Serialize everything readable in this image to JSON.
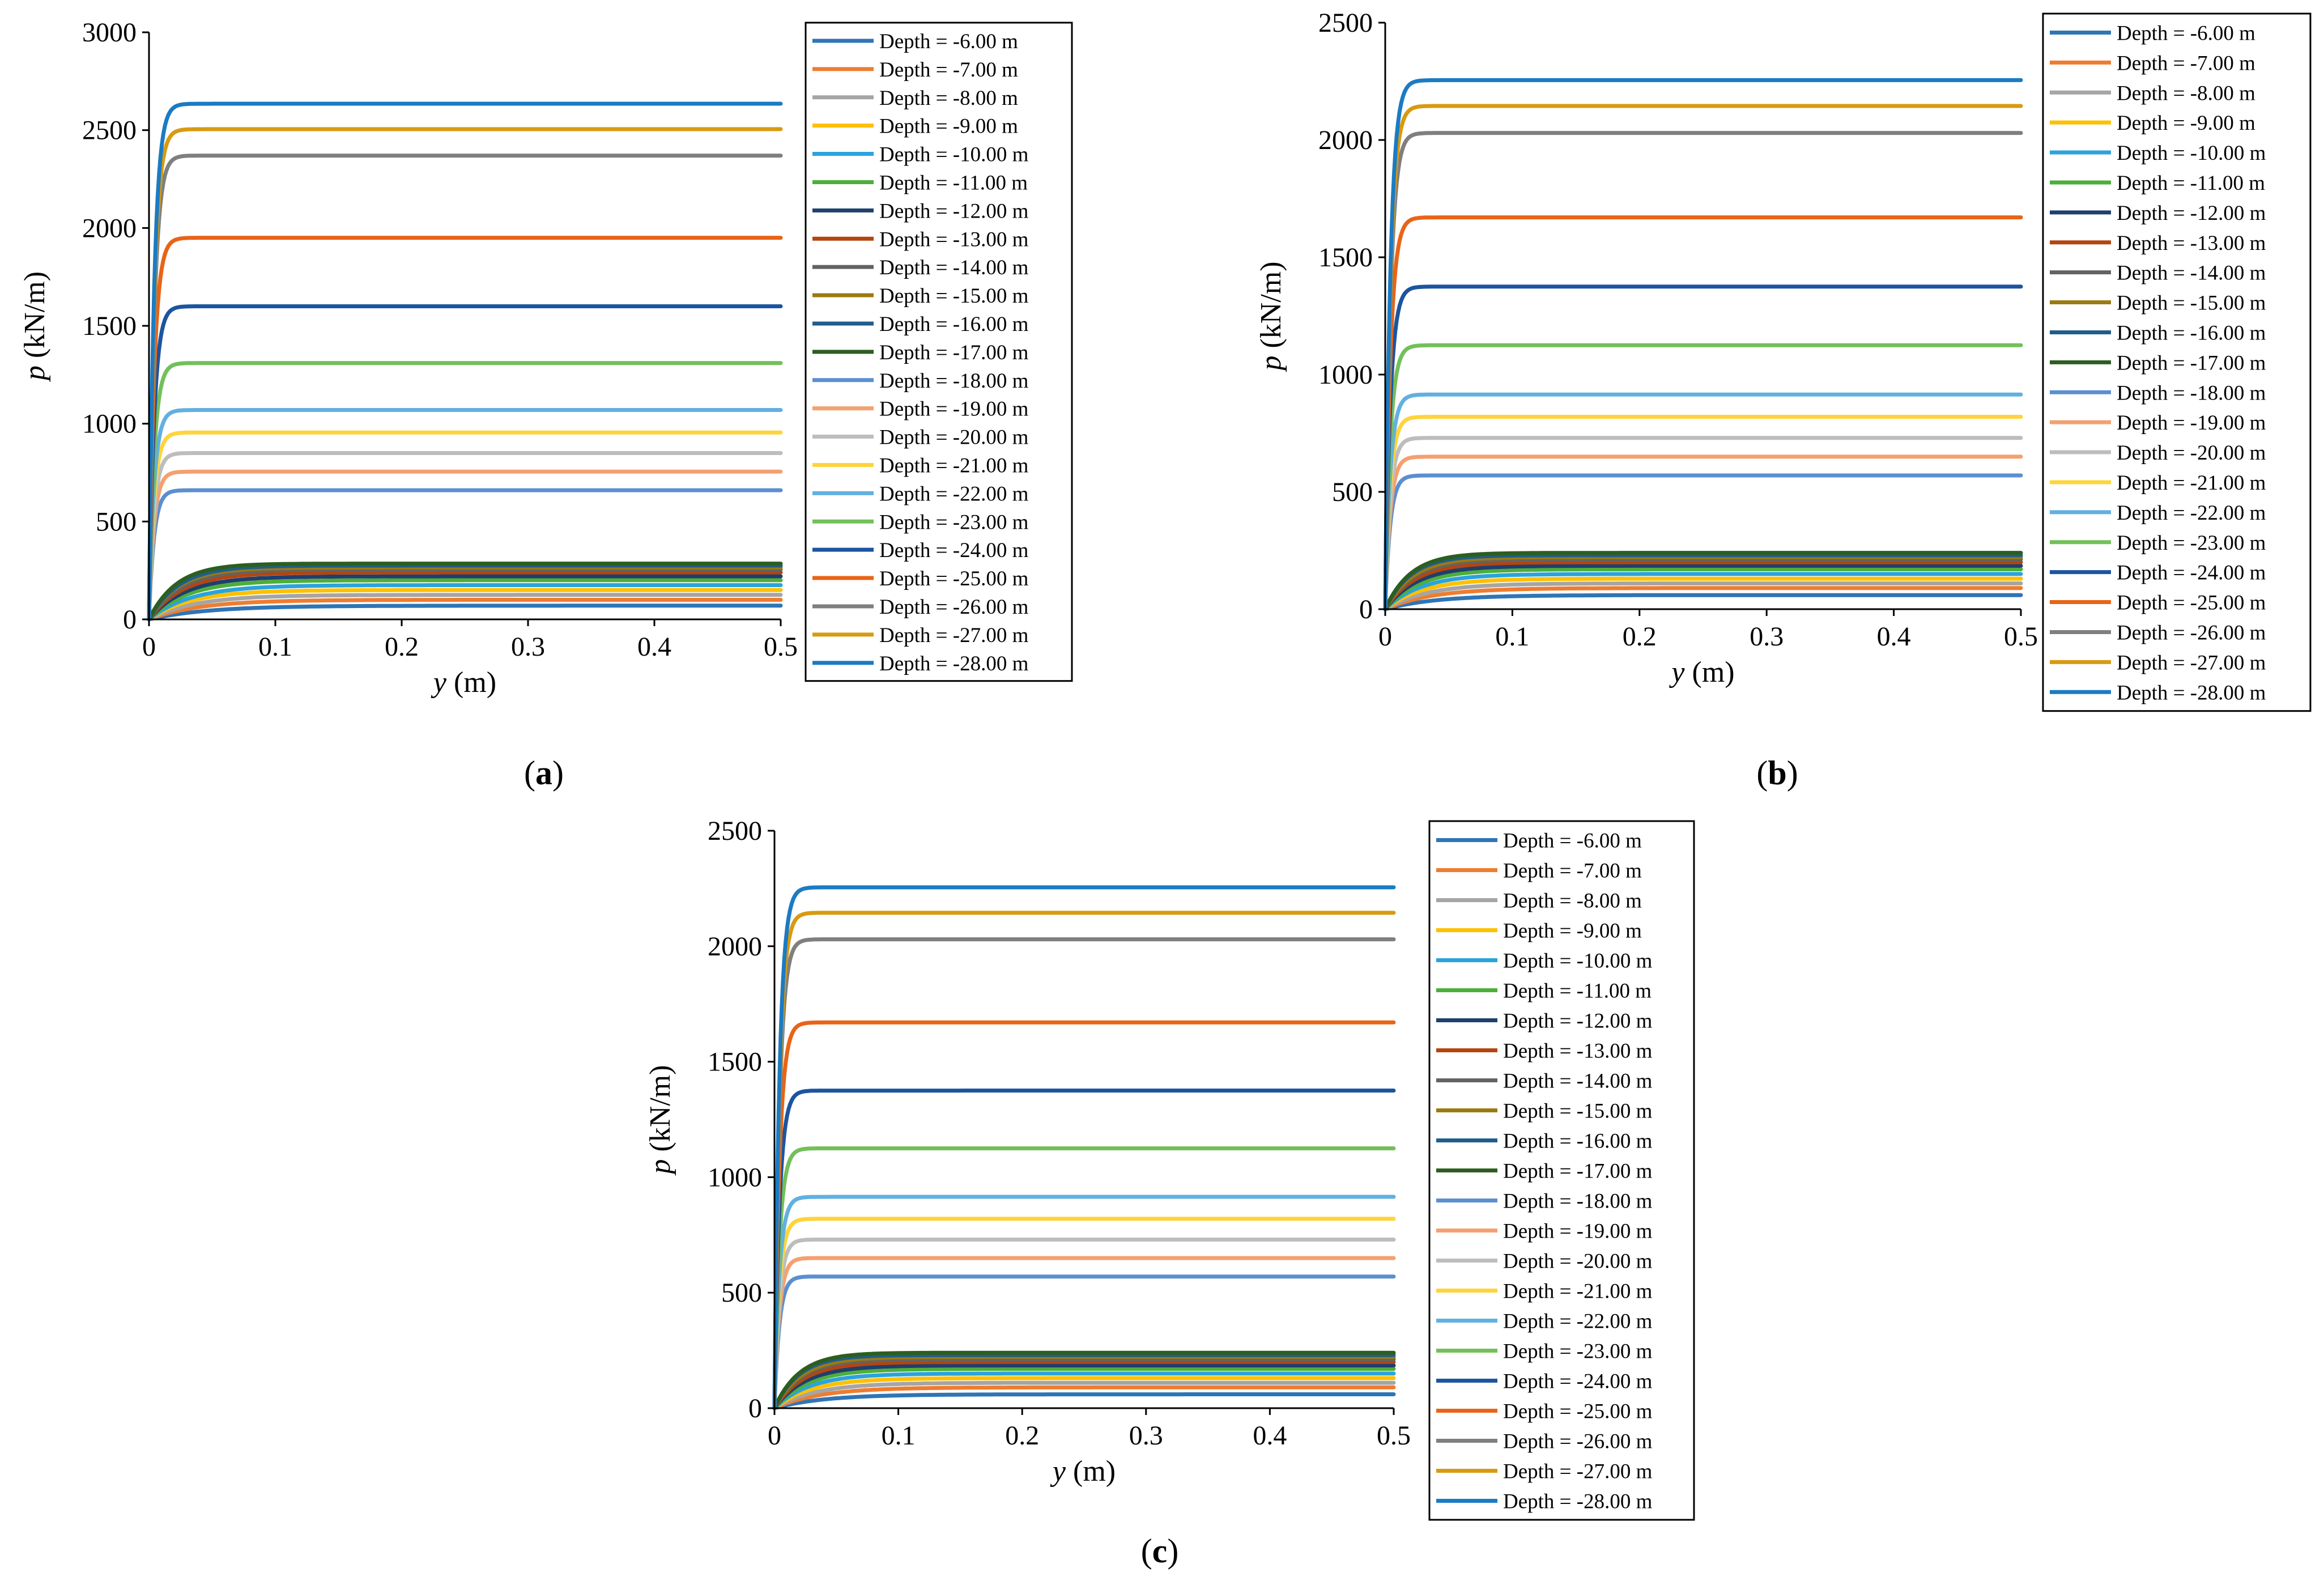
{
  "colors": {
    "palette": [
      "#2E75B6",
      "#ED7D31",
      "#A5A5A5",
      "#FFC000",
      "#2BA3DC",
      "#4CAF3A",
      "#1F3F6E",
      "#B3450F",
      "#636363",
      "#9C7A10",
      "#1F5E8C",
      "#2C5E20",
      "#5B8FD0",
      "#F4A070",
      "#BDBDBD",
      "#FFD43B",
      "#62B0E0",
      "#73C05A",
      "#1B55A0",
      "#E86417",
      "#7F7F7F",
      "#D89A10",
      "#1B7BC3"
    ]
  },
  "chart_data": [
    {
      "type": "line",
      "caption": "a",
      "title": "",
      "xlabel_italic": "y",
      "xlabel_rest": " (m)",
      "ylabel_italic": "p",
      "ylabel_rest": " (kN/m)",
      "xlim": [
        0,
        0.5
      ],
      "ylim": [
        0,
        3000
      ],
      "xticks": [
        "0",
        "0.1",
        "0.2",
        "0.3",
        "0.4",
        "0.5"
      ],
      "yticks": [
        "0",
        "500",
        "1000",
        "1500",
        "2000",
        "2500",
        "3000"
      ],
      "series": [
        {
          "name": "Depth = -6.00 m",
          "ult": 70,
          "y50": 0.14
        },
        {
          "name": "Depth = -7.00 m",
          "ult": 100,
          "y50": 0.12
        },
        {
          "name": "Depth = -8.00 m",
          "ult": 125,
          "y50": 0.11
        },
        {
          "name": "Depth = -9.00 m",
          "ult": 150,
          "y50": 0.1
        },
        {
          "name": "Depth = -10.00 m",
          "ult": 175,
          "y50": 0.1
        },
        {
          "name": "Depth = -11.00 m",
          "ult": 200,
          "y50": 0.09
        },
        {
          "name": "Depth = -12.00 m",
          "ult": 220,
          "y50": 0.085
        },
        {
          "name": "Depth = -13.00 m",
          "ult": 240,
          "y50": 0.08
        },
        {
          "name": "Depth = -14.00 m",
          "ult": 255,
          "y50": 0.075
        },
        {
          "name": "Depth = -15.00 m",
          "ult": 265,
          "y50": 0.07
        },
        {
          "name": "Depth = -16.00 m",
          "ult": 275,
          "y50": 0.07
        },
        {
          "name": "Depth = -17.00 m",
          "ult": 285,
          "y50": 0.065
        },
        {
          "name": "Depth = -18.00 m",
          "ult": 660,
          "y50": 0.012
        },
        {
          "name": "Depth = -19.00 m",
          "ult": 755,
          "y50": 0.012
        },
        {
          "name": "Depth = -20.00 m",
          "ult": 850,
          "y50": 0.012
        },
        {
          "name": "Depth = -21.00 m",
          "ult": 955,
          "y50": 0.012
        },
        {
          "name": "Depth = -22.00 m",
          "ult": 1070,
          "y50": 0.012
        },
        {
          "name": "Depth = -23.00 m",
          "ult": 1310,
          "y50": 0.012
        },
        {
          "name": "Depth = -24.00 m",
          "ult": 1600,
          "y50": 0.012
        },
        {
          "name": "Depth = -25.00 m",
          "ult": 1950,
          "y50": 0.012
        },
        {
          "name": "Depth = -26.00 m",
          "ult": 2370,
          "y50": 0.012
        },
        {
          "name": "Depth = -27.00 m",
          "ult": 2505,
          "y50": 0.012
        },
        {
          "name": "Depth = -28.00 m",
          "ult": 2635,
          "y50": 0.012
        }
      ]
    },
    {
      "type": "line",
      "caption": "b",
      "title": "",
      "xlabel_italic": "y",
      "xlabel_rest": " (m)",
      "ylabel_italic": "p",
      "ylabel_rest": " (kN/m)",
      "xlim": [
        0,
        0.5
      ],
      "ylim": [
        0,
        2500
      ],
      "xticks": [
        "0",
        "0.1",
        "0.2",
        "0.3",
        "0.4",
        "0.5"
      ],
      "yticks": [
        "0",
        "500",
        "1000",
        "1500",
        "2000",
        "2500"
      ],
      "series": [
        {
          "name": "Depth = -6.00 m",
          "ult": 60,
          "y50": 0.12
        },
        {
          "name": "Depth = -7.00 m",
          "ult": 90,
          "y50": 0.11
        },
        {
          "name": "Depth = -8.00 m",
          "ult": 110,
          "y50": 0.1
        },
        {
          "name": "Depth = -9.00 m",
          "ult": 130,
          "y50": 0.09
        },
        {
          "name": "Depth = -10.00 m",
          "ult": 150,
          "y50": 0.085
        },
        {
          "name": "Depth = -11.00 m",
          "ult": 170,
          "y50": 0.08
        },
        {
          "name": "Depth = -12.00 m",
          "ult": 185,
          "y50": 0.075
        },
        {
          "name": "Depth = -13.00 m",
          "ult": 200,
          "y50": 0.07
        },
        {
          "name": "Depth = -14.00 m",
          "ult": 212,
          "y50": 0.065
        },
        {
          "name": "Depth = -15.00 m",
          "ult": 222,
          "y50": 0.065
        },
        {
          "name": "Depth = -16.00 m",
          "ult": 230,
          "y50": 0.06
        },
        {
          "name": "Depth = -17.00 m",
          "ult": 240,
          "y50": 0.06
        },
        {
          "name": "Depth = -18.00 m",
          "ult": 570,
          "y50": 0.012
        },
        {
          "name": "Depth = -19.00 m",
          "ult": 650,
          "y50": 0.012
        },
        {
          "name": "Depth = -20.00 m",
          "ult": 730,
          "y50": 0.012
        },
        {
          "name": "Depth = -21.00 m",
          "ult": 820,
          "y50": 0.012
        },
        {
          "name": "Depth = -22.00 m",
          "ult": 915,
          "y50": 0.012
        },
        {
          "name": "Depth = -23.00 m",
          "ult": 1125,
          "y50": 0.012
        },
        {
          "name": "Depth = -24.00 m",
          "ult": 1375,
          "y50": 0.012
        },
        {
          "name": "Depth = -25.00 m",
          "ult": 1670,
          "y50": 0.012
        },
        {
          "name": "Depth = -26.00 m",
          "ult": 2030,
          "y50": 0.012
        },
        {
          "name": "Depth = -27.00 m",
          "ult": 2145,
          "y50": 0.012
        },
        {
          "name": "Depth = -28.00 m",
          "ult": 2255,
          "y50": 0.012
        }
      ]
    },
    {
      "type": "line",
      "caption": "c",
      "title": "",
      "xlabel_italic": "y",
      "xlabel_rest": " (m)",
      "ylabel_italic": "p",
      "ylabel_rest": " (kN/m)",
      "xlim": [
        0,
        0.5
      ],
      "ylim": [
        0,
        2500
      ],
      "xticks": [
        "0",
        "0.1",
        "0.2",
        "0.3",
        "0.4",
        "0.5"
      ],
      "yticks": [
        "0",
        "500",
        "1000",
        "1500",
        "2000",
        "2500"
      ],
      "series": [
        {
          "name": "Depth = -6.00 m",
          "ult": 60,
          "y50": 0.12
        },
        {
          "name": "Depth = -7.00 m",
          "ult": 90,
          "y50": 0.11
        },
        {
          "name": "Depth = -8.00 m",
          "ult": 110,
          "y50": 0.1
        },
        {
          "name": "Depth = -9.00 m",
          "ult": 130,
          "y50": 0.09
        },
        {
          "name": "Depth = -10.00 m",
          "ult": 150,
          "y50": 0.085
        },
        {
          "name": "Depth = -11.00 m",
          "ult": 170,
          "y50": 0.08
        },
        {
          "name": "Depth = -12.00 m",
          "ult": 185,
          "y50": 0.075
        },
        {
          "name": "Depth = -13.00 m",
          "ult": 200,
          "y50": 0.07
        },
        {
          "name": "Depth = -14.00 m",
          "ult": 212,
          "y50": 0.065
        },
        {
          "name": "Depth = -15.00 m",
          "ult": 222,
          "y50": 0.065
        },
        {
          "name": "Depth = -16.00 m",
          "ult": 230,
          "y50": 0.06
        },
        {
          "name": "Depth = -17.00 m",
          "ult": 240,
          "y50": 0.06
        },
        {
          "name": "Depth = -18.00 m",
          "ult": 570,
          "y50": 0.012
        },
        {
          "name": "Depth = -19.00 m",
          "ult": 650,
          "y50": 0.012
        },
        {
          "name": "Depth = -20.00 m",
          "ult": 730,
          "y50": 0.012
        },
        {
          "name": "Depth = -21.00 m",
          "ult": 820,
          "y50": 0.012
        },
        {
          "name": "Depth = -22.00 m",
          "ult": 915,
          "y50": 0.012
        },
        {
          "name": "Depth = -23.00 m",
          "ult": 1125,
          "y50": 0.012
        },
        {
          "name": "Depth = -24.00 m",
          "ult": 1375,
          "y50": 0.012
        },
        {
          "name": "Depth = -25.00 m",
          "ult": 1670,
          "y50": 0.012
        },
        {
          "name": "Depth = -26.00 m",
          "ult": 2030,
          "y50": 0.012
        },
        {
          "name": "Depth = -27.00 m",
          "ult": 2145,
          "y50": 0.012
        },
        {
          "name": "Depth = -28.00 m",
          "ult": 2255,
          "y50": 0.012
        }
      ]
    }
  ]
}
